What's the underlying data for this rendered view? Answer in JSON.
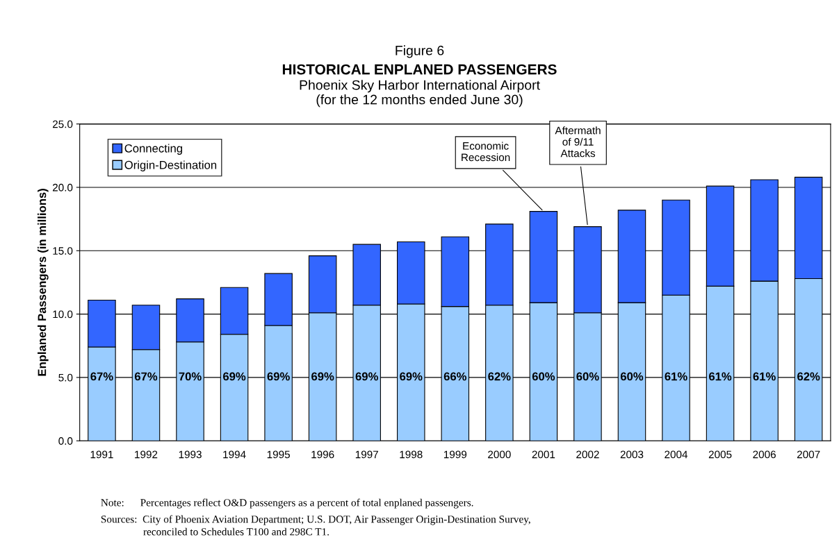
{
  "chart_data": {
    "type": "bar",
    "stacked": true,
    "title": "HISTORICAL ENPLANED PASSENGERS",
    "subtitle": "Phoenix Sky Harbor International Airport\n(for the 12 months ended June 30)",
    "ylabel": "Enplaned Passengers (in millions)",
    "categories": [
      "1991",
      "1992",
      "1993",
      "1994",
      "1995",
      "1996",
      "1997",
      "1998",
      "1999",
      "2000",
      "2001",
      "2002",
      "2003",
      "2004",
      "2005",
      "2006",
      "2007"
    ],
    "series": [
      {
        "name": "Origin-Destination",
        "color": "#99ccff",
        "values": [
          7.4,
          7.2,
          7.8,
          8.4,
          9.1,
          10.1,
          10.7,
          10.8,
          10.6,
          10.7,
          10.9,
          10.1,
          10.9,
          11.5,
          12.2,
          12.6,
          12.8
        ]
      },
      {
        "name": "Connecting",
        "color": "#3366ff",
        "values": [
          3.7,
          3.5,
          3.4,
          3.7,
          4.1,
          4.5,
          4.8,
          4.9,
          5.5,
          6.4,
          7.2,
          6.8,
          7.3,
          7.5,
          7.9,
          8.0,
          8.0
        ]
      }
    ],
    "ylim": [
      0,
      25
    ],
    "yticks": [
      {
        "value": 0,
        "label": "0.0"
      },
      {
        "value": 5,
        "label": "5.0"
      },
      {
        "value": 10,
        "label": "10.0"
      },
      {
        "value": 15,
        "label": "15.0"
      },
      {
        "value": 20,
        "label": "20.0"
      },
      {
        "value": 25,
        "label": "25.0"
      }
    ],
    "grid": "y",
    "legend": "top left",
    "annotations": [
      "Figure 6",
      "67%",
      "67%",
      "70%",
      "69%",
      "69%",
      "69%",
      "69%",
      "69%",
      "66%",
      "62%",
      "60%",
      "60%",
      "60%",
      "61%",
      "61%",
      "61%",
      "62%",
      {
        "text": "Economic\nRecession",
        "x": "2001",
        "y": 18.1
      },
      {
        "text": "Aftermath\nof 9/11\nAttacks",
        "x": "2002",
        "y": 16.9
      },
      "Note:      Percentages reflect O&D passengers as a percent of total enplaned passengers.",
      "Sources:  City of Phoenix Aviation Department; U.S. DOT, Air Passenger Origin-Destination Survey,\n                reconciled to Schedules T100 and 298C T1."
    ]
  }
}
